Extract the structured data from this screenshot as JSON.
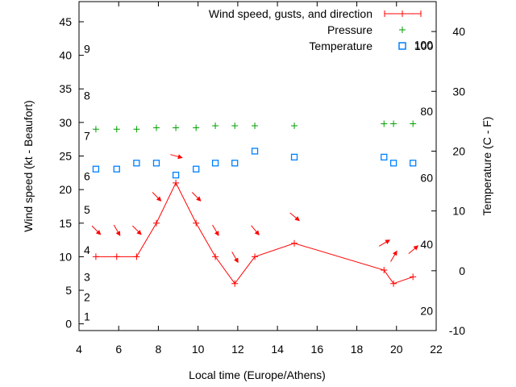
{
  "chart_data": {
    "type": "line",
    "xlabel": "Local time (Europe/Athens)",
    "ylabel": "Wind speed (kt - Beaufort)",
    "y2label": "Temperature (C - F)",
    "xlim": [
      4,
      22
    ],
    "ylim": [
      -1,
      48
    ],
    "y2lim": [
      -10,
      45
    ],
    "xticks": [
      4,
      6,
      8,
      10,
      12,
      14,
      16,
      18,
      20,
      22
    ],
    "yticks": [
      0,
      5,
      10,
      15,
      20,
      25,
      30,
      35,
      40,
      45
    ],
    "y2ticks": [
      -10,
      0,
      10,
      20,
      30,
      40
    ],
    "legend_position": "top-right",
    "colors": {
      "wind": "#ff0000",
      "pressure": "#00a000",
      "temperature": "#0080ff",
      "axis": "#000000"
    },
    "beaufort_labels": [
      {
        "label": "1",
        "kt": 1.1
      },
      {
        "label": "2",
        "kt": 4
      },
      {
        "label": "3",
        "kt": 7
      },
      {
        "label": "4",
        "kt": 11
      },
      {
        "label": "5",
        "kt": 17
      },
      {
        "label": "6",
        "kt": 22
      },
      {
        "label": "7",
        "kt": 28
      },
      {
        "label": "8",
        "kt": 34
      },
      {
        "label": "9",
        "kt": 41
      }
    ],
    "fahrenheit_labels": [
      {
        "label": "20",
        "f": 20
      },
      {
        "label": "40",
        "f": 40
      },
      {
        "label": "60",
        "f": 60
      },
      {
        "label": "80",
        "f": 80
      },
      {
        "label": "100",
        "f": 100
      }
    ],
    "series": [
      {
        "name": "Wind speed, gusts, and direction",
        "x": [
          4.85,
          5.9,
          6.9,
          7.9,
          8.88,
          9.9,
          10.87,
          11.85,
          12.86,
          14.85,
          19.37,
          19.85,
          20.83
        ],
        "values": [
          10,
          10,
          10,
          15,
          21,
          15,
          10,
          6,
          10,
          12,
          8,
          6,
          7
        ],
        "direction_deg": [
          315,
          330,
          315,
          315,
          285,
          315,
          330,
          330,
          320,
          310,
          240,
          210,
          230
        ]
      },
      {
        "name": "Pressure",
        "x": [
          4.85,
          5.9,
          6.9,
          7.9,
          8.88,
          9.9,
          10.87,
          11.85,
          12.86,
          14.85,
          19.37,
          19.85,
          20.83
        ],
        "values": [
          29,
          29,
          29,
          29.2,
          29.2,
          29.2,
          29.5,
          29.5,
          29.5,
          29.5,
          29.8,
          29.8,
          29.8
        ]
      },
      {
        "name": "Temperature",
        "x": [
          4.85,
          5.9,
          6.9,
          7.9,
          8.88,
          9.9,
          10.87,
          11.85,
          12.86,
          14.85,
          19.37,
          19.85,
          20.83
        ],
        "values": [
          17,
          17,
          18,
          18,
          16,
          17,
          18,
          18,
          20,
          19,
          19,
          18,
          18
        ]
      }
    ]
  }
}
